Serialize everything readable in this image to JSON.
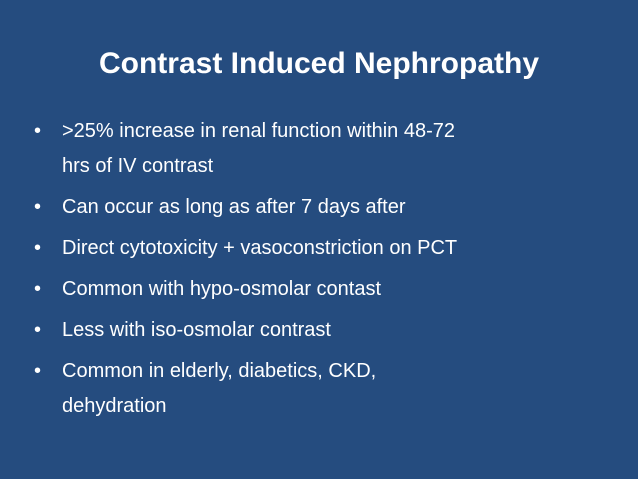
{
  "slide": {
    "title": "Contrast Induced Nephropathy",
    "bullets": [
      {
        "lines": [
          ">25% increase in renal function within 48-72",
          "hrs of IV contrast"
        ]
      },
      {
        "lines": [
          "Can occur as long as after 7 days after"
        ]
      },
      {
        "lines": [
          "Direct cytotoxicity + vasoconstriction on PCT"
        ]
      },
      {
        "lines": [
          "Common with hypo-osmolar contast"
        ]
      },
      {
        "lines": [
          "Less with iso-osmolar contrast"
        ]
      },
      {
        "lines": [
          "Common in elderly, diabetics, CKD,",
          "dehydration"
        ]
      }
    ]
  }
}
